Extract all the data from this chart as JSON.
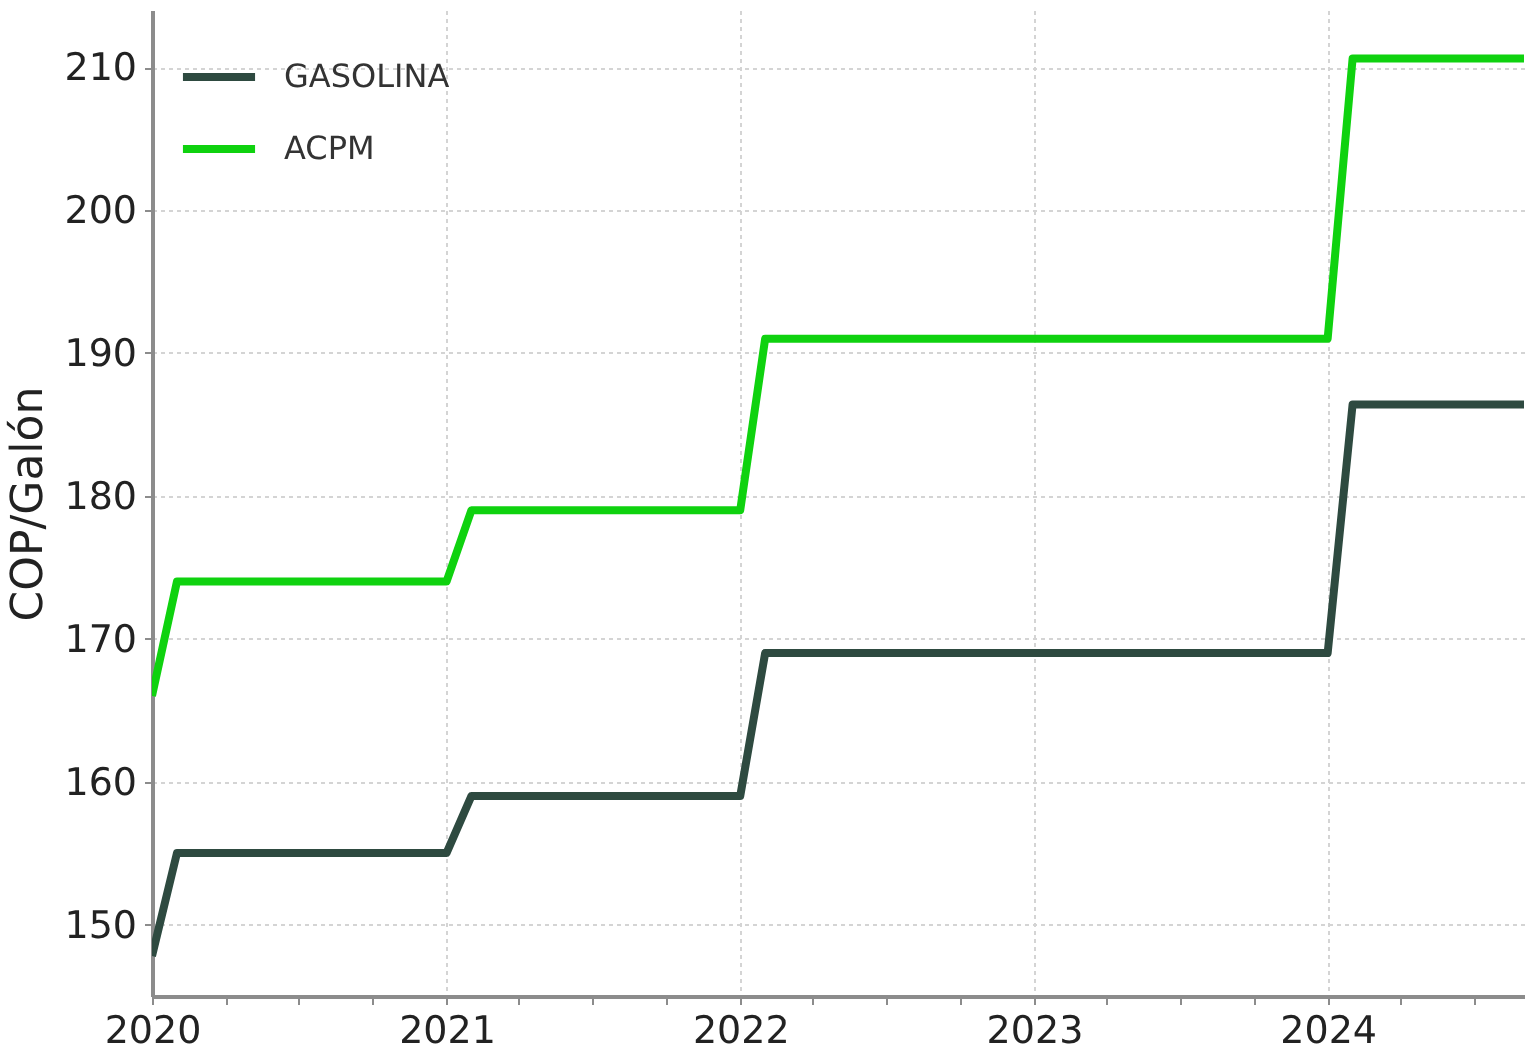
{
  "chart_data": {
    "type": "line",
    "ylabel": "COP/Galón",
    "x": [
      "2020-01",
      "2020-02",
      "2021-01",
      "2021-02",
      "2022-01",
      "2022-02",
      "2024-01",
      "2024-02",
      "2024-09"
    ],
    "series": [
      {
        "name": "GASOLINA",
        "color": "#2e4a40",
        "values": [
          147.8,
          155,
          155,
          159,
          159,
          169,
          169,
          186.4,
          186.4
        ]
      },
      {
        "name": "ACPM",
        "color": "#0fd20f",
        "values": [
          166,
          174,
          174,
          179,
          179,
          191,
          191,
          210.6,
          210.6
        ]
      }
    ],
    "xlim": [
      "2020-01",
      "2024-09"
    ],
    "ylim": [
      145,
      214
    ],
    "xticks": [
      "2020",
      {
        "value": "2020-04",
        "label": null
      },
      {
        "value": "2020-07",
        "label": null
      },
      {
        "value": "2020-10",
        "label": null
      },
      "2021",
      {
        "value": "2021-04",
        "label": null
      },
      {
        "value": "2021-07",
        "label": null
      },
      {
        "value": "2021-10",
        "label": null
      },
      "2022",
      {
        "value": "2022-04",
        "label": null
      },
      {
        "value": "2022-07",
        "label": null
      },
      {
        "value": "2022-10",
        "label": null
      },
      "2023",
      {
        "value": "2023-04",
        "label": null
      },
      {
        "value": "2023-07",
        "label": null
      },
      {
        "value": "2023-10",
        "label": null
      },
      "2024",
      {
        "value": "2024-04",
        "label": null
      },
      {
        "value": "2024-07",
        "label": null
      }
    ],
    "yticks": [
      150,
      160,
      170,
      180,
      190,
      200,
      210
    ],
    "grid": true,
    "legend": "top left"
  }
}
